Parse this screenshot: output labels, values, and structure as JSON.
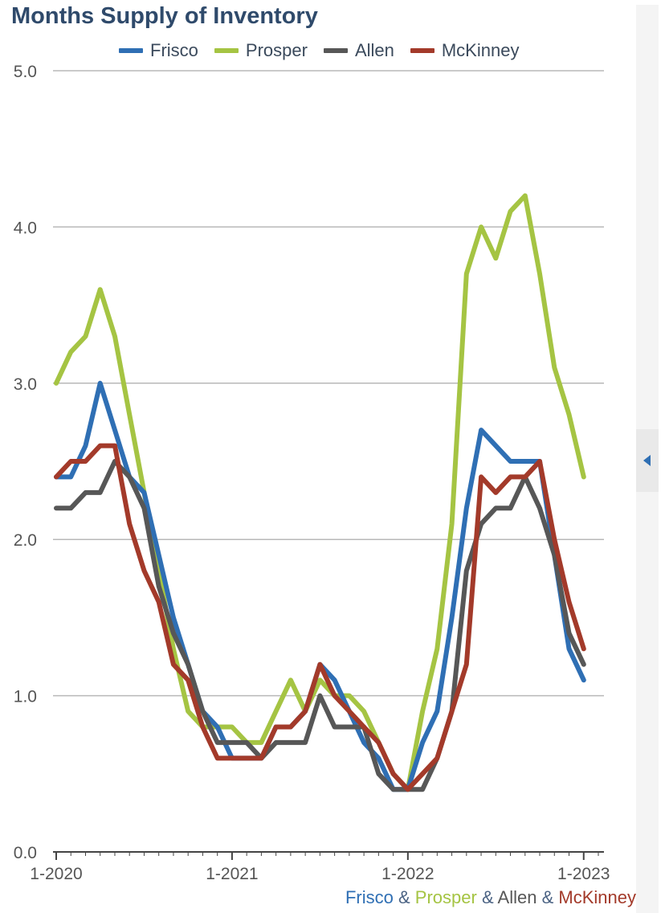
{
  "title": "Months Supply of Inventory",
  "colors": {
    "frisco": "#2f6fb4",
    "prosper": "#a5c443",
    "allen": "#575757",
    "mckinney": "#a33a2a",
    "grid": "#b8b8b8",
    "title": "#2f4a6b"
  },
  "legend": [
    {
      "name": "Frisco",
      "color": "#2f6fb4"
    },
    {
      "name": "Prosper",
      "color": "#a5c443"
    },
    {
      "name": "Allen",
      "color": "#575757"
    },
    {
      "name": "McKinney",
      "color": "#a33a2a"
    }
  ],
  "footer": {
    "frisco": "Frisco",
    "prosper": "Prosper",
    "allen": "Allen",
    "mckinney": "McKinney",
    "amp": "&"
  },
  "side_tab_icon": "collapse-arrow-left-icon",
  "chart_data": {
    "type": "line",
    "title": "Months Supply of Inventory",
    "x_tick_labels": [
      "1-2020",
      "1-2021",
      "1-2022",
      "1-2023"
    ],
    "x_tick_months": [
      0,
      12,
      24,
      36
    ],
    "y_tick_labels": [
      "0.0",
      "1.0",
      "2.0",
      "3.0",
      "4.0",
      "5.0"
    ],
    "ylim": [
      0,
      5
    ],
    "xlim_months": [
      0,
      37
    ],
    "grid": true,
    "legend_position": "top",
    "series": [
      {
        "name": "Frisco",
        "color": "#2f6fb4",
        "values": [
          2.4,
          2.4,
          2.6,
          3.0,
          2.7,
          2.4,
          2.3,
          1.9,
          1.5,
          1.2,
          0.9,
          0.8,
          0.6,
          0.6,
          0.6,
          0.8,
          0.8,
          0.9,
          1.2,
          1.1,
          0.9,
          0.7,
          0.6,
          0.4,
          0.4,
          0.7,
          0.9,
          1.5,
          2.2,
          2.7,
          2.6,
          2.5,
          2.5,
          2.5,
          1.9,
          1.3,
          1.1
        ]
      },
      {
        "name": "Prosper",
        "color": "#a5c443",
        "values": [
          3.0,
          3.2,
          3.3,
          3.6,
          3.3,
          2.8,
          2.3,
          1.8,
          1.3,
          0.9,
          0.8,
          0.8,
          0.8,
          0.7,
          0.7,
          0.9,
          1.1,
          0.9,
          1.1,
          1.0,
          1.0,
          0.9,
          0.7,
          0.5,
          0.4,
          0.9,
          1.3,
          2.1,
          3.7,
          4.0,
          3.8,
          4.1,
          4.2,
          3.7,
          3.1,
          2.8,
          2.4
        ]
      },
      {
        "name": "Allen",
        "color": "#575757",
        "values": [
          2.2,
          2.2,
          2.3,
          2.3,
          2.5,
          2.4,
          2.2,
          1.7,
          1.4,
          1.2,
          0.9,
          0.7,
          0.7,
          0.7,
          0.6,
          0.7,
          0.7,
          0.7,
          1.0,
          0.8,
          0.8,
          0.8,
          0.5,
          0.4,
          0.4,
          0.4,
          0.6,
          0.9,
          1.8,
          2.1,
          2.2,
          2.2,
          2.4,
          2.2,
          1.9,
          1.4,
          1.2
        ]
      },
      {
        "name": "McKinney",
        "color": "#a33a2a",
        "values": [
          2.4,
          2.5,
          2.5,
          2.6,
          2.6,
          2.1,
          1.8,
          1.6,
          1.2,
          1.1,
          0.8,
          0.6,
          0.6,
          0.6,
          0.6,
          0.8,
          0.8,
          0.9,
          1.2,
          1.0,
          0.9,
          0.8,
          0.7,
          0.5,
          0.4,
          0.5,
          0.6,
          0.9,
          1.2,
          2.4,
          2.3,
          2.4,
          2.4,
          2.5,
          2.0,
          1.6,
          1.3
        ]
      }
    ]
  }
}
